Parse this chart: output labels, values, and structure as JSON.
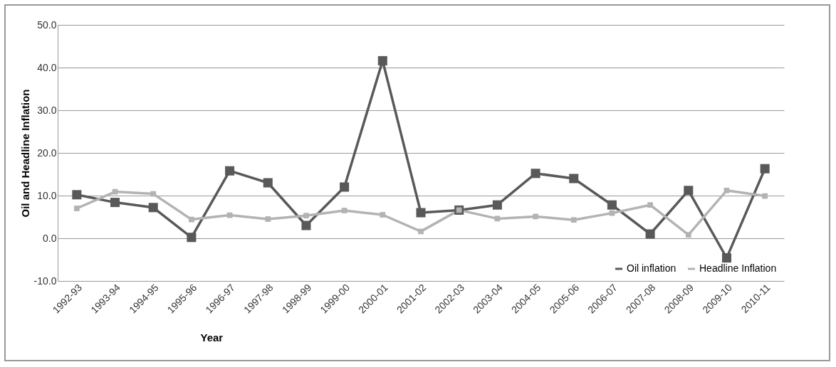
{
  "chart_data": {
    "type": "line",
    "xlabel": "Year",
    "ylabel": "Oil and Headline Inflation",
    "categories": [
      "1992-93",
      "1993-94",
      "1994-95",
      "1995-96",
      "1996-97",
      "1997-98",
      "1998-99",
      "1999-00",
      "2000-01",
      "2001-02",
      "2002-03",
      "2003-04",
      "2004-05",
      "2005-06",
      "2006-07",
      "2007-08",
      "2008-09",
      "2009-10",
      "2010-11"
    ],
    "series": [
      {
        "name": "Oil inflation",
        "color": "#595959",
        "values": [
          10.2,
          8.4,
          7.2,
          0.2,
          15.8,
          13.0,
          3.0,
          12.0,
          41.6,
          6.0,
          6.6,
          7.8,
          15.2,
          14.0,
          7.8,
          1.0,
          11.2,
          -4.6,
          16.3
        ]
      },
      {
        "name": "Headline Inflation",
        "color": "#b3b3b3",
        "values": [
          7.0,
          10.9,
          10.4,
          4.4,
          5.4,
          4.5,
          5.3,
          6.5,
          5.5,
          1.6,
          6.6,
          4.6,
          5.1,
          4.3,
          5.9,
          7.8,
          0.8,
          11.2,
          9.9
        ]
      }
    ],
    "ylim": [
      -10,
      50
    ],
    "yticks": [
      {
        "value": -10,
        "label": "-10.0"
      },
      {
        "value": 0,
        "label": "0.0"
      },
      {
        "value": 10,
        "label": "10.0"
      },
      {
        "value": 20,
        "label": "20.0"
      },
      {
        "value": 30,
        "label": "30.0"
      },
      {
        "value": 40,
        "label": "40.0"
      },
      {
        "value": 50,
        "label": "50.0"
      }
    ],
    "grid": "y",
    "legend": "bottom right",
    "marker": "square",
    "line_style": "solid"
  }
}
